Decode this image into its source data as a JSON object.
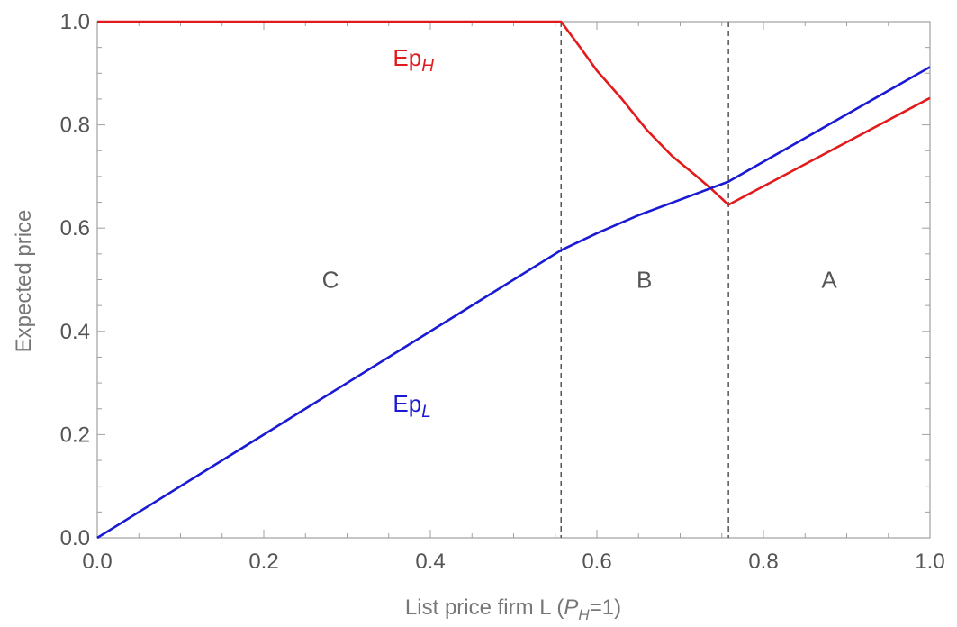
{
  "chart_data": {
    "type": "line",
    "xlabel_main": "List price firm L  (",
    "xlabel_sym": "P",
    "xlabel_sub": "H",
    "xlabel_tail": "=1)",
    "ylabel": "Expected price",
    "xlim": [
      0,
      1
    ],
    "ylim": [
      0,
      1
    ],
    "x_ticks": [
      0.0,
      0.2,
      0.4,
      0.6,
      0.8,
      1.0
    ],
    "x_tick_labels": [
      "0.0",
      "0.2",
      "0.4",
      "0.6",
      "0.8",
      "1.0"
    ],
    "y_ticks": [
      0.0,
      0.2,
      0.4,
      0.6,
      0.8,
      1.0
    ],
    "y_tick_labels": [
      "0.0",
      "0.2",
      "0.4",
      "0.6",
      "0.8",
      "1.0"
    ],
    "grid": false,
    "vlines": [
      0.557,
      0.758
    ],
    "series": [
      {
        "name": "EpH",
        "label_main": "Ep",
        "label_sub": "H",
        "color": "#e31a1c",
        "points": [
          [
            0.0,
            1.0
          ],
          [
            0.557,
            1.0
          ],
          [
            0.58,
            0.95
          ],
          [
            0.6,
            0.905
          ],
          [
            0.63,
            0.85
          ],
          [
            0.66,
            0.79
          ],
          [
            0.69,
            0.74
          ],
          [
            0.72,
            0.7
          ],
          [
            0.74,
            0.672
          ],
          [
            0.758,
            0.645
          ],
          [
            1.0,
            0.852
          ]
        ]
      },
      {
        "name": "EpL",
        "label_main": "Ep",
        "label_sub": "L",
        "color": "#1a1ad4",
        "points": [
          [
            0.0,
            0.0
          ],
          [
            0.557,
            0.557
          ],
          [
            0.6,
            0.59
          ],
          [
            0.65,
            0.625
          ],
          [
            0.7,
            0.655
          ],
          [
            0.758,
            0.69
          ],
          [
            1.0,
            0.912
          ]
        ]
      }
    ],
    "annotations": [
      {
        "text": "C",
        "x": 0.28,
        "y": 0.5
      },
      {
        "text": "B",
        "x": 0.657,
        "y": 0.5
      },
      {
        "text": "A",
        "x": 0.879,
        "y": 0.5
      }
    ],
    "series_labels": [
      {
        "series": 0,
        "x": 0.355,
        "y": 0.93
      },
      {
        "series": 1,
        "x": 0.355,
        "y": 0.26
      }
    ]
  }
}
